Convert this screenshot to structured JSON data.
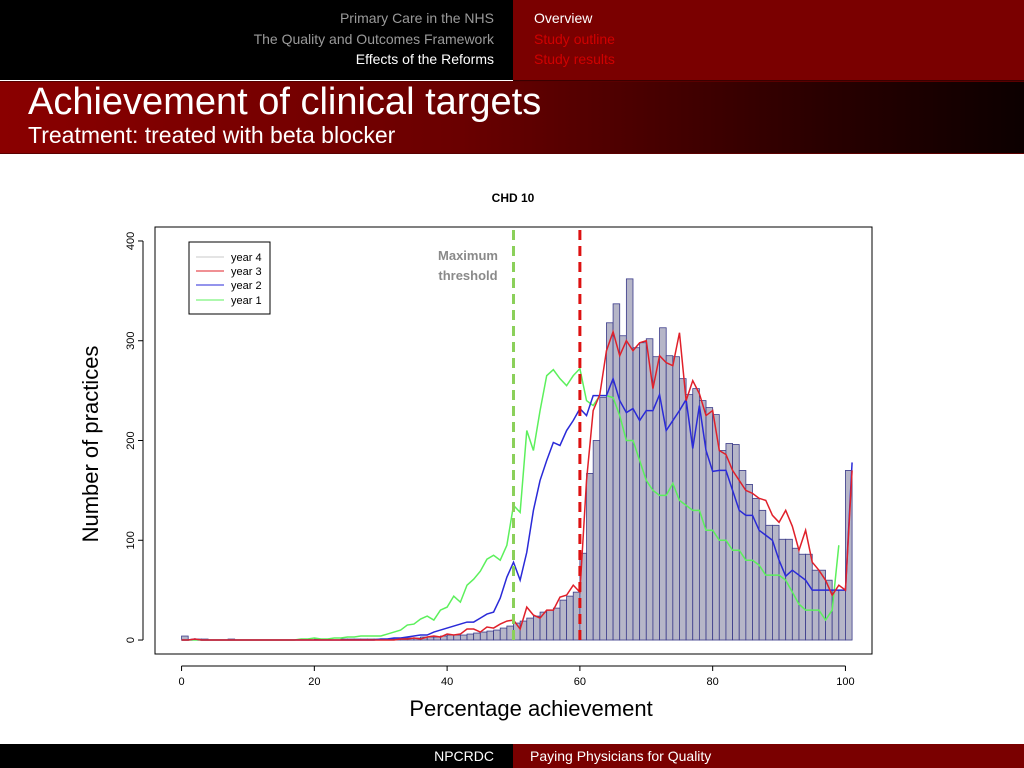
{
  "nav": {
    "items": [
      {
        "label": "Primary Care in the NHS",
        "active": false
      },
      {
        "label": "The Quality and Outcomes Framework",
        "active": false
      },
      {
        "label": "Effects of the Reforms",
        "active": true
      }
    ]
  },
  "sections": {
    "items": [
      {
        "label": "Overview",
        "color": "#ffffff"
      },
      {
        "label": "Study outline",
        "color": "#d00000"
      },
      {
        "label": "Study results",
        "color": "#d00000"
      }
    ]
  },
  "slide": {
    "title": "Achievement of clinical targets",
    "subtitle": "Treatment: treated with beta blocker"
  },
  "footer": {
    "left": "NPCRDC",
    "right": "Paying Physicians for Quality"
  },
  "colors": {
    "dark_red": "#7a0000",
    "bar_fill": "#b6b6c8",
    "bar_stroke": "#3b3b8a",
    "year3": "#e0202a",
    "year2": "#2a2ad8",
    "year1": "#5cf05c",
    "year4": "#c8c8c8",
    "threshold_green": "#8bd05a",
    "threshold_red": "#dd1111"
  },
  "chart_data": {
    "type": "bar",
    "title": "CHD 10",
    "xlabel": "Percentage achievement",
    "ylabel": "Number of practices",
    "xlim": [
      -4,
      104
    ],
    "ylim": [
      -14,
      414
    ],
    "xticks": [
      0,
      20,
      40,
      60,
      80,
      100
    ],
    "yticks": [
      0,
      100,
      200,
      300,
      400
    ],
    "legend": {
      "position": "top-left",
      "entries": [
        "year 4",
        "year 3",
        "year 2",
        "year 1"
      ]
    },
    "annotation": {
      "text_lines": [
        "Maximum",
        "threshold"
      ],
      "x": 47
    },
    "threshold_lines": [
      {
        "x": 50,
        "color": "green",
        "style": "dashed"
      },
      {
        "x": 60,
        "color": "red",
        "style": "dashed"
      }
    ],
    "histogram": {
      "name": "year 4",
      "bin_start": 0,
      "bin_width": 1,
      "values": [
        4,
        0,
        1,
        1,
        0,
        0,
        0,
        1,
        0,
        0,
        0,
        0,
        0,
        0,
        0,
        0,
        0,
        0,
        0,
        0,
        1,
        1,
        0,
        0,
        1,
        1,
        1,
        1,
        1,
        1,
        1,
        1,
        1,
        2,
        2,
        2,
        3,
        3,
        3,
        4,
        5,
        5,
        5,
        6,
        7,
        8,
        9,
        10,
        12,
        14,
        17,
        19,
        22,
        24,
        28,
        30,
        32,
        40,
        44,
        48,
        87,
        167,
        200,
        243,
        318,
        337,
        305,
        362,
        293,
        298,
        302,
        284,
        313,
        285,
        284,
        262,
        246,
        252,
        240,
        233,
        226,
        190,
        197,
        196,
        170,
        156,
        142,
        130,
        115,
        115,
        101,
        101,
        92,
        86,
        86,
        70,
        70,
        60,
        50,
        50,
        170
      ],
      "edge_last_value": 172
    },
    "series": [
      {
        "name": "year 3",
        "x_start": 0,
        "values": [
          0,
          0,
          1,
          0,
          0,
          0,
          0,
          0,
          0,
          0,
          0,
          0,
          0,
          0,
          0,
          0,
          0,
          0,
          0,
          0,
          0,
          0,
          0,
          0,
          0,
          0,
          0,
          0,
          0,
          0,
          0,
          0,
          0,
          1,
          1,
          2,
          1,
          3,
          4,
          3,
          6,
          5,
          6,
          11,
          11,
          8,
          13,
          12,
          16,
          19,
          20,
          11,
          33,
          25,
          22,
          30,
          30,
          43,
          45,
          55,
          48,
          160,
          230,
          246,
          290,
          309,
          285,
          300,
          290,
          298,
          300,
          252,
          285,
          278,
          275,
          308,
          240,
          260,
          247,
          225,
          230,
          190,
          186,
          170,
          160,
          150,
          147,
          142,
          140,
          125,
          118,
          130,
          114,
          90,
          110,
          78,
          70,
          60,
          45,
          55,
          50,
          170
        ]
      },
      {
        "name": "year 2",
        "x_start": 0,
        "values": [
          0,
          0,
          1,
          0,
          0,
          0,
          0,
          0,
          0,
          0,
          0,
          0,
          0,
          0,
          0,
          0,
          0,
          0,
          0,
          0,
          0,
          0,
          0,
          0,
          0,
          0,
          0,
          0,
          0,
          0,
          1,
          1,
          2,
          2,
          3,
          4,
          5,
          5,
          8,
          10,
          12,
          14,
          16,
          18,
          18,
          22,
          26,
          28,
          42,
          63,
          78,
          60,
          88,
          130,
          160,
          180,
          198,
          195,
          210,
          220,
          232,
          225,
          245,
          245,
          245,
          262,
          240,
          228,
          232,
          220,
          230,
          230,
          246,
          210,
          220,
          230,
          241,
          192,
          235,
          190,
          169,
          170,
          170,
          150,
          130,
          125,
          125,
          110,
          105,
          100,
          80,
          64,
          70,
          65,
          60,
          50,
          50,
          50,
          50,
          50,
          50,
          178
        ]
      },
      {
        "name": "year 1",
        "x_start": 0,
        "values": [
          0,
          0,
          0,
          0,
          0,
          0,
          0,
          0,
          0,
          0,
          0,
          0,
          0,
          0,
          0,
          0,
          0,
          0,
          1,
          1,
          2,
          1,
          1,
          2,
          2,
          3,
          3,
          4,
          4,
          4,
          4,
          6,
          8,
          10,
          15,
          16,
          21,
          24,
          20,
          30,
          33,
          44,
          38,
          55,
          61,
          69,
          81,
          85,
          80,
          95,
          135,
          128,
          210,
          190,
          230,
          265,
          271,
          262,
          255,
          265,
          272,
          240,
          235,
          245,
          245,
          243,
          225,
          200,
          200,
          180,
          160,
          150,
          145,
          145,
          157,
          140,
          135,
          130,
          130,
          110,
          110,
          100,
          100,
          90,
          90,
          80,
          80,
          75,
          65,
          65,
          65,
          60,
          48,
          36,
          30,
          30,
          30,
          20,
          30,
          95
        ]
      },
      {
        "name": "year 4",
        "x_start": 0,
        "values": []
      }
    ]
  }
}
